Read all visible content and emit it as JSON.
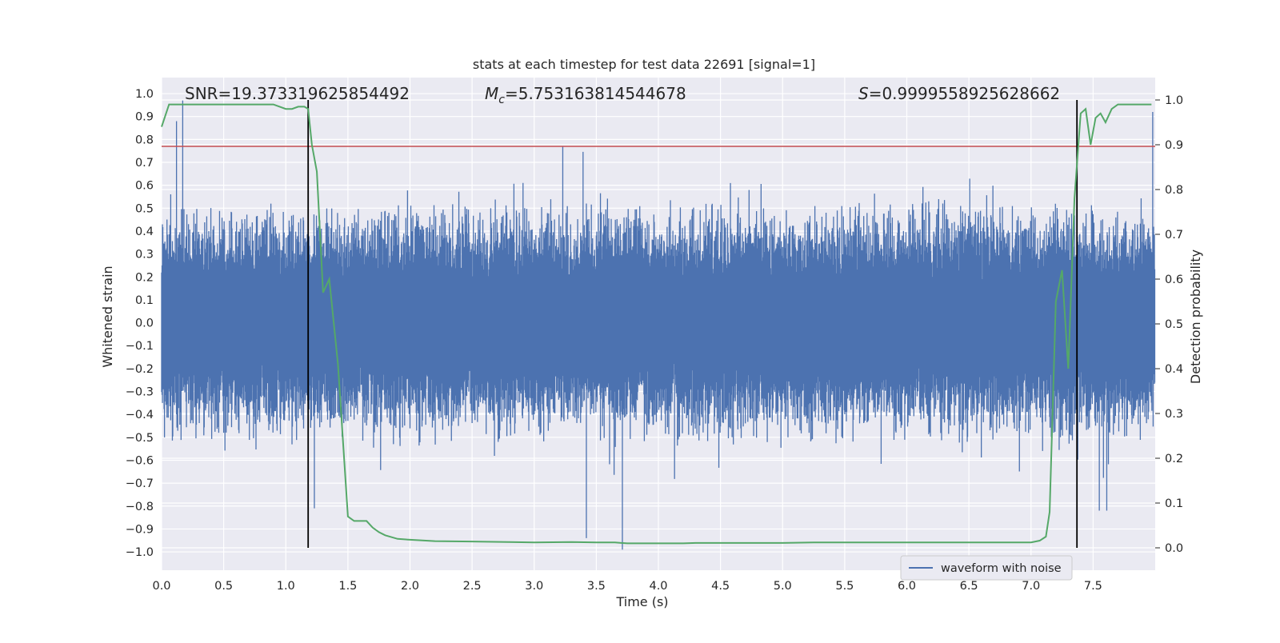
{
  "chart_data": {
    "type": "line",
    "title": "stats at each timestep for test data 22691 [signal=1]",
    "xlabel": "Time (s)",
    "ylabel_left": "Whitened strain",
    "ylabel_right": "Detection probability",
    "xlim": [
      0.0,
      8.0
    ],
    "ylim_left": [
      -1.08,
      1.07
    ],
    "ylim_right": [
      -0.05,
      1.05
    ],
    "x_ticks": [
      0.0,
      0.5,
      1.0,
      1.5,
      2.0,
      2.5,
      3.0,
      3.5,
      4.0,
      4.5,
      5.0,
      5.5,
      6.0,
      6.5,
      7.0,
      7.5
    ],
    "x_tick_labels": [
      "0.0",
      "0.5",
      "1.0",
      "1.5",
      "2.0",
      "2.5",
      "3.0",
      "3.5",
      "4.0",
      "4.5",
      "5.0",
      "5.5",
      "6.0",
      "6.5",
      "7.0",
      "7.5"
    ],
    "y_left_ticks": [
      1.0,
      0.9,
      0.8,
      0.7,
      0.6,
      0.5,
      0.4,
      0.3,
      0.2,
      0.1,
      0.0,
      -0.1,
      -0.2,
      -0.3,
      -0.4,
      -0.5,
      -0.6,
      -0.7,
      -0.8,
      -0.9,
      -1.0
    ],
    "y_left_tick_labels": [
      "1.0",
      "0.9",
      "0.8",
      "0.7",
      "0.6",
      "0.5",
      "0.4",
      "0.3",
      "0.2",
      "0.1",
      "0.0",
      "−0.1",
      "−0.2",
      "−0.3",
      "−0.4",
      "−0.5",
      "−0.6",
      "−0.7",
      "−0.8",
      "−0.9",
      "−1.0"
    ],
    "y_right_ticks": [
      1.0,
      0.9,
      0.8,
      0.7,
      0.6,
      0.5,
      0.4,
      0.3,
      0.2,
      0.1,
      0.0
    ],
    "y_right_tick_labels": [
      "1.0",
      "0.9",
      "0.8",
      "0.7",
      "0.6",
      "0.5",
      "0.4",
      "0.3",
      "0.2",
      "0.1",
      "0.0"
    ],
    "annotations": {
      "snr": "SNR=19.373319625854492",
      "mc_symbol": "M",
      "mc_subscript": "c",
      "mc_value": "=5.753163814544678",
      "s_symbol": "S",
      "s_value": "=0.9999558925628662"
    },
    "threshold_strain": 0.77,
    "vertical_lines_x": [
      1.18,
      7.37
    ],
    "series": [
      {
        "name": "waveform with noise",
        "axis": "left",
        "kind": "noise",
        "color": "#4c72b0",
        "typical_max": 0.42,
        "typical_min": -0.42,
        "observed_max": 0.97,
        "observed_min": -0.99,
        "peaks": [
          {
            "x": 0.12,
            "y": 0.88
          },
          {
            "x": 0.17,
            "y": 0.97
          },
          {
            "x": 3.23,
            "y": 0.77
          },
          {
            "x": 7.98,
            "y": 0.92
          },
          {
            "x": 1.23,
            "y": -0.81
          },
          {
            "x": 3.42,
            "y": -0.94
          },
          {
            "x": 3.71,
            "y": -0.99
          },
          {
            "x": 7.55,
            "y": -0.82
          },
          {
            "x": 7.61,
            "y": -0.82
          }
        ]
      },
      {
        "name": "detection probability",
        "axis": "right",
        "kind": "line",
        "color": "#55a868",
        "x": [
          0.0,
          0.06,
          0.12,
          0.2,
          0.3,
          0.4,
          0.5,
          0.6,
          0.7,
          0.8,
          0.9,
          1.0,
          1.05,
          1.1,
          1.15,
          1.18,
          1.21,
          1.25,
          1.3,
          1.35,
          1.42,
          1.5,
          1.55,
          1.6,
          1.65,
          1.7,
          1.75,
          1.8,
          1.9,
          2.0,
          2.2,
          2.5,
          2.8,
          3.0,
          3.3,
          3.5,
          3.6,
          3.65,
          3.7,
          3.75,
          3.9,
          4.2,
          4.3,
          4.5,
          4.8,
          5.0,
          5.25,
          5.5,
          5.8,
          6.0,
          6.5,
          6.8,
          7.0,
          7.07,
          7.12,
          7.15,
          7.2,
          7.25,
          7.3,
          7.35,
          7.4,
          7.44,
          7.48,
          7.52,
          7.56,
          7.6,
          7.65,
          7.7,
          7.8,
          7.9,
          7.97
        ],
        "y": [
          0.94,
          0.99,
          0.99,
          0.99,
          0.99,
          0.99,
          0.99,
          0.99,
          0.99,
          0.99,
          0.99,
          0.98,
          0.98,
          0.985,
          0.985,
          0.98,
          0.9,
          0.84,
          0.57,
          0.6,
          0.41,
          0.07,
          0.06,
          0.06,
          0.06,
          0.045,
          0.035,
          0.028,
          0.02,
          0.018,
          0.015,
          0.014,
          0.013,
          0.012,
          0.013,
          0.012,
          0.012,
          0.012,
          0.011,
          0.01,
          0.01,
          0.01,
          0.011,
          0.011,
          0.011,
          0.011,
          0.012,
          0.012,
          0.012,
          0.012,
          0.012,
          0.012,
          0.012,
          0.016,
          0.025,
          0.08,
          0.55,
          0.62,
          0.4,
          0.78,
          0.97,
          0.98,
          0.9,
          0.96,
          0.97,
          0.95,
          0.98,
          0.99,
          0.99,
          0.99,
          0.99
        ]
      }
    ],
    "legend": {
      "label": "waveform with noise",
      "placement": "lower-right"
    }
  },
  "colors": {
    "plot_bg": "#eaeaf2",
    "grid": "#ffffff",
    "waveform": "#4c72b0",
    "probability": "#55a868",
    "threshold": "#c44e52",
    "vline": "#000000"
  }
}
